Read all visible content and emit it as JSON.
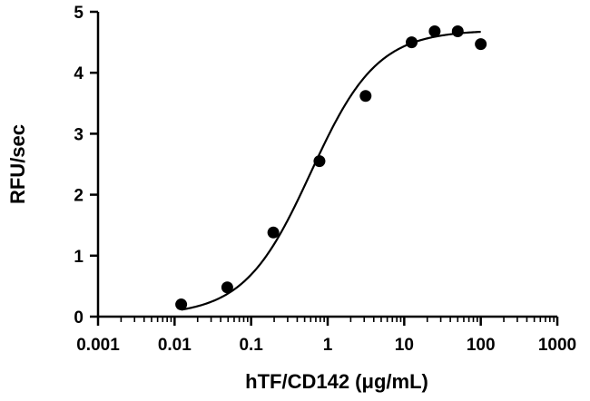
{
  "chart_data": {
    "type": "scatter",
    "xlabel": "hTF/CD142 (μg/mL)",
    "ylabel": "RFU/sec",
    "x_scale": "log",
    "xlim": [
      0.001,
      1000
    ],
    "ylim": [
      0,
      5
    ],
    "x_ticks": [
      0.001,
      0.01,
      0.1,
      1,
      10,
      100,
      1000
    ],
    "x_tick_labels": [
      "0.001",
      "0.01",
      "0.1",
      "1",
      "10",
      "100",
      "1000"
    ],
    "y_ticks": [
      0,
      1,
      2,
      3,
      4,
      5
    ],
    "y_tick_labels": [
      "0",
      "1",
      "2",
      "3",
      "4",
      "5"
    ],
    "grid": false,
    "series": [
      {
        "points": [
          {
            "x": 0.0122,
            "y": 0.2
          },
          {
            "x": 0.0488,
            "y": 0.48
          },
          {
            "x": 0.195,
            "y": 1.38
          },
          {
            "x": 0.781,
            "y": 2.55
          },
          {
            "x": 3.13,
            "y": 3.62
          },
          {
            "x": 12.5,
            "y": 4.5
          },
          {
            "x": 25,
            "y": 4.68
          },
          {
            "x": 50,
            "y": 4.68
          },
          {
            "x": 100,
            "y": 4.47
          }
        ],
        "fit": {
          "bottom": 0.02,
          "top": 4.7,
          "ec50": 0.6,
          "hill": 1.0,
          "x_range": [
            0.0122,
            100
          ]
        }
      }
    ]
  }
}
